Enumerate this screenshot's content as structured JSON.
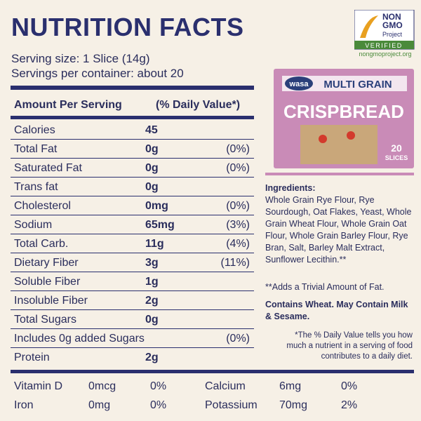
{
  "header": {
    "title": "NUTRITION FACTS"
  },
  "logo": {
    "line1": "NON",
    "line2": "GMO",
    "line3": "Project",
    "line4": "VERIFIED",
    "url": "nongmoproject.org"
  },
  "serving": {
    "size": "Serving size: 1 Slice (14g)",
    "per_container": "Servings per container: about 20"
  },
  "table": {
    "header": [
      "Amount Per Serving",
      "(% Daily Value*)"
    ],
    "rows": [
      [
        "Calories",
        "45"
      ],
      [
        "Total Fat",
        "0g",
        "(0%)"
      ],
      [
        "Saturated Fat",
        "0g",
        "(0%)"
      ],
      [
        "Trans fat",
        "0g"
      ],
      [
        "Cholesterol",
        "0mg",
        "(0%)"
      ],
      [
        "Sodium",
        "65mg",
        "(3%)"
      ],
      [
        "Total Carb.",
        "11g",
        "(4%)"
      ],
      [
        "Dietary Fiber",
        "3g",
        "(11%)"
      ],
      [
        "Soluble Fiber",
        "1g"
      ],
      [
        "Insoluble Fiber",
        "2g"
      ],
      [
        "Total Sugars",
        "0g"
      ],
      [
        "Includes 0g added Sugars",
        "(0%)"
      ],
      [
        "Protein",
        "2g"
      ]
    ]
  },
  "vitamins": [
    [
      "Vitamin D",
      "0mcg",
      "0%",
      "Calcium",
      "6mg",
      "0%"
    ],
    [
      "Iron",
      "0mg",
      "0%",
      "Potassium",
      "70mg",
      "2%"
    ]
  ],
  "product": {
    "brand": "wasa",
    "variety": "MULTI GRAIN",
    "name": "CRISPBREAD",
    "count": "20",
    "unit": "SLICES"
  },
  "ingredients": {
    "heading": "Ingredients:",
    "text": "Whole Grain Rye Flour, Rye Sourdough, Oat Flakes, Yeast, Whole Grain Wheat Flour, Whole Grain Oat Flour, Whole Grain Barley Flour, Rye Bran, Salt, Barley Malt Extract, Sunflower Lecithin.**",
    "note": "**Adds a Trivial Amount of Fat.",
    "allergen": "Contains Wheat. May Contain Milk & Sesame.",
    "footnote": "*The % Daily Value tells you how much a nutrient in a serving of food contributes to a daily diet."
  }
}
